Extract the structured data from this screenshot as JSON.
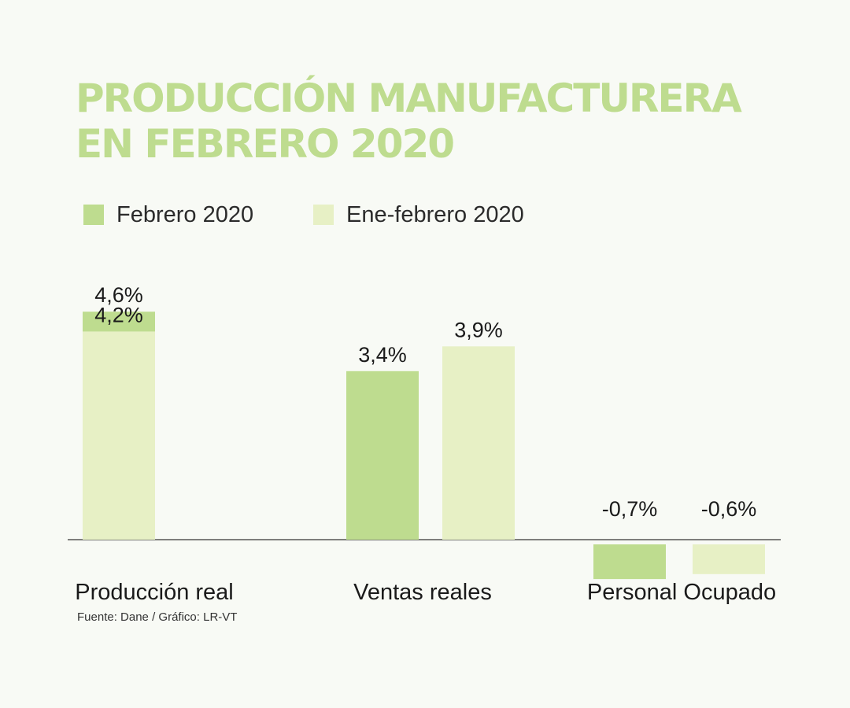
{
  "title": {
    "line1": "PRODUCCIÓN MANUFACTURERA",
    "line2": "EN FEBRERO 2020"
  },
  "legend": [
    {
      "label": "Febrero 2020",
      "color": "#bedc8f"
    },
    {
      "label": "Ene-febrero 2020",
      "color": "#e7f0c5"
    }
  ],
  "source": {
    "fuente": "Fuente: Dane",
    "grafico": "/ Gráfico: LR-VT"
  },
  "colors": {
    "title": "#bedc8f",
    "axis": "#555555",
    "text": "#1a1a1a",
    "background": "#f8faf5"
  },
  "chart_data": {
    "type": "bar",
    "categories": [
      "Producción real",
      "Ventas reales",
      "Personal Ocupado"
    ],
    "series": [
      {
        "name": "Febrero 2020",
        "values": [
          4.6,
          3.4,
          -0.7
        ],
        "labels": [
          "4,6%",
          "3,4%",
          "-0,7%"
        ]
      },
      {
        "name": "Ene-febrero 2020",
        "values": [
          4.2,
          3.9,
          -0.6
        ],
        "labels": [
          "4,2%",
          "3,9%",
          "-0,6%"
        ]
      }
    ],
    "title": "PRODUCCIÓN MANUFACTURERA EN FEBRERO 2020",
    "xlabel": "",
    "ylabel": "",
    "ylim": [
      -1,
      5
    ],
    "grid": false,
    "legend_position": "top-left"
  }
}
